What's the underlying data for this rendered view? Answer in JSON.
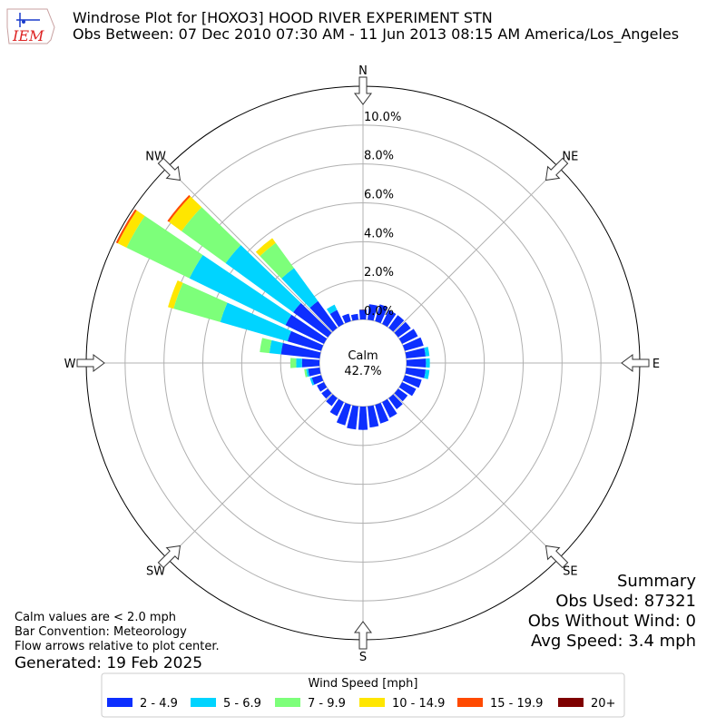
{
  "chart_data": {
    "type": "windrose",
    "title": "Windrose Plot for [HOXO3] HOOD RIVER EXPERIMENT STN",
    "subtitle": "Obs Between: 07 Dec 2010 07:30 AM - 11 Jun 2013 08:15 AM America/Los_Angeles",
    "logo_text": "IEM",
    "x": [
      0,
      10,
      20,
      30,
      40,
      50,
      60,
      70,
      80,
      90,
      100,
      110,
      120,
      130,
      140,
      150,
      160,
      170,
      180,
      190,
      200,
      210,
      220,
      230,
      240,
      250,
      260,
      270,
      280,
      290,
      300,
      310,
      320,
      330,
      340,
      350
    ],
    "xticks": [
      {
        "value": 0,
        "label": "N"
      },
      {
        "value": 45,
        "label": "NE"
      },
      {
        "value": 90,
        "label": "E"
      },
      {
        "value": 135,
        "label": "SE"
      },
      {
        "value": 180,
        "label": "S"
      },
      {
        "value": 225,
        "label": "SW"
      },
      {
        "value": 270,
        "label": "W"
      },
      {
        "value": 315,
        "label": "NW"
      }
    ],
    "ylim": [
      0,
      12
    ],
    "yticks": [
      {
        "value": 0,
        "label": "0.0%"
      },
      {
        "value": 2,
        "label": "2.0%"
      },
      {
        "value": 4,
        "label": "4.0%"
      },
      {
        "value": 6,
        "label": "6.0%"
      },
      {
        "value": 8,
        "label": "8.0%"
      },
      {
        "value": 10,
        "label": "10.0%"
      }
    ],
    "grid": true,
    "calm": {
      "label": "Calm",
      "value": 42.7,
      "value_label": "42.7%"
    },
    "legend_title": "Wind Speed [mph]",
    "series": [
      {
        "name": "2 - 4.9",
        "color": "#0d2fff",
        "values": [
          0.5,
          0.8,
          0.9,
          0.8,
          0.8,
          0.8,
          0.9,
          1.0,
          1.0,
          1.0,
          1.0,
          0.9,
          0.8,
          0.6,
          0.7,
          0.9,
          1.0,
          1.1,
          1.2,
          1.2,
          1.1,
          0.8,
          0.5,
          0.4,
          0.4,
          0.5,
          0.6,
          0.9,
          2.0,
          1.8,
          2.2,
          2.2,
          1.7,
          0.8,
          0.4,
          0.3
        ]
      },
      {
        "name": "5 - 6.9",
        "color": "#00d4ff",
        "values": [
          0,
          0,
          0,
          0,
          0,
          0,
          0,
          0,
          0.2,
          0.2,
          0.2,
          0,
          0,
          0,
          0,
          0,
          0,
          0,
          0,
          0,
          0,
          0,
          0,
          0,
          0,
          0.1,
          0.1,
          0.3,
          0.6,
          3.6,
          5.5,
          4.3,
          2.1,
          0.3,
          0,
          0
        ]
      },
      {
        "name": "7 - 9.9",
        "color": "#7dff7a",
        "values": [
          0,
          0,
          0,
          0,
          0,
          0,
          0,
          0,
          0,
          0,
          0,
          0,
          0,
          0,
          0,
          0,
          0,
          0,
          0,
          0,
          0,
          0,
          0,
          0,
          0,
          0,
          0.1,
          0.3,
          0.5,
          2.5,
          3.6,
          2.8,
          1.6,
          0,
          0,
          0
        ]
      },
      {
        "name": "10 - 14.9",
        "color": "#ffe600",
        "values": [
          0,
          0,
          0,
          0,
          0,
          0,
          0,
          0,
          0,
          0,
          0,
          0,
          0,
          0,
          0,
          0,
          0,
          0,
          0,
          0,
          0,
          0,
          0,
          0,
          0,
          0,
          0,
          0,
          0,
          0.3,
          0.5,
          0.8,
          0.3,
          0,
          0,
          0
        ]
      },
      {
        "name": "15 - 19.9",
        "color": "#ff4a00",
        "values": [
          0,
          0,
          0,
          0,
          0,
          0,
          0,
          0,
          0,
          0,
          0,
          0,
          0,
          0,
          0,
          0,
          0,
          0,
          0,
          0,
          0,
          0,
          0,
          0,
          0,
          0,
          0,
          0,
          0,
          0,
          0.1,
          0.1,
          0,
          0,
          0,
          0
        ]
      },
      {
        "name": "20+",
        "color": "#7f0000",
        "values": [
          0,
          0,
          0,
          0,
          0,
          0,
          0,
          0,
          0,
          0,
          0,
          0,
          0,
          0,
          0,
          0,
          0,
          0,
          0,
          0,
          0,
          0,
          0,
          0,
          0,
          0,
          0,
          0,
          0,
          0,
          0,
          0,
          0,
          0,
          0,
          0
        ]
      }
    ],
    "summary": [
      "Summary",
      "Obs Used: 87321",
      "Obs Without Wind: 0",
      "Avg Speed: 3.4 mph"
    ],
    "notes": [
      "Calm values are < 2.0 mph",
      "Bar Convention: Meteorology",
      "Flow arrows relative to plot center."
    ],
    "generated": "Generated: 19 Feb 2025"
  }
}
